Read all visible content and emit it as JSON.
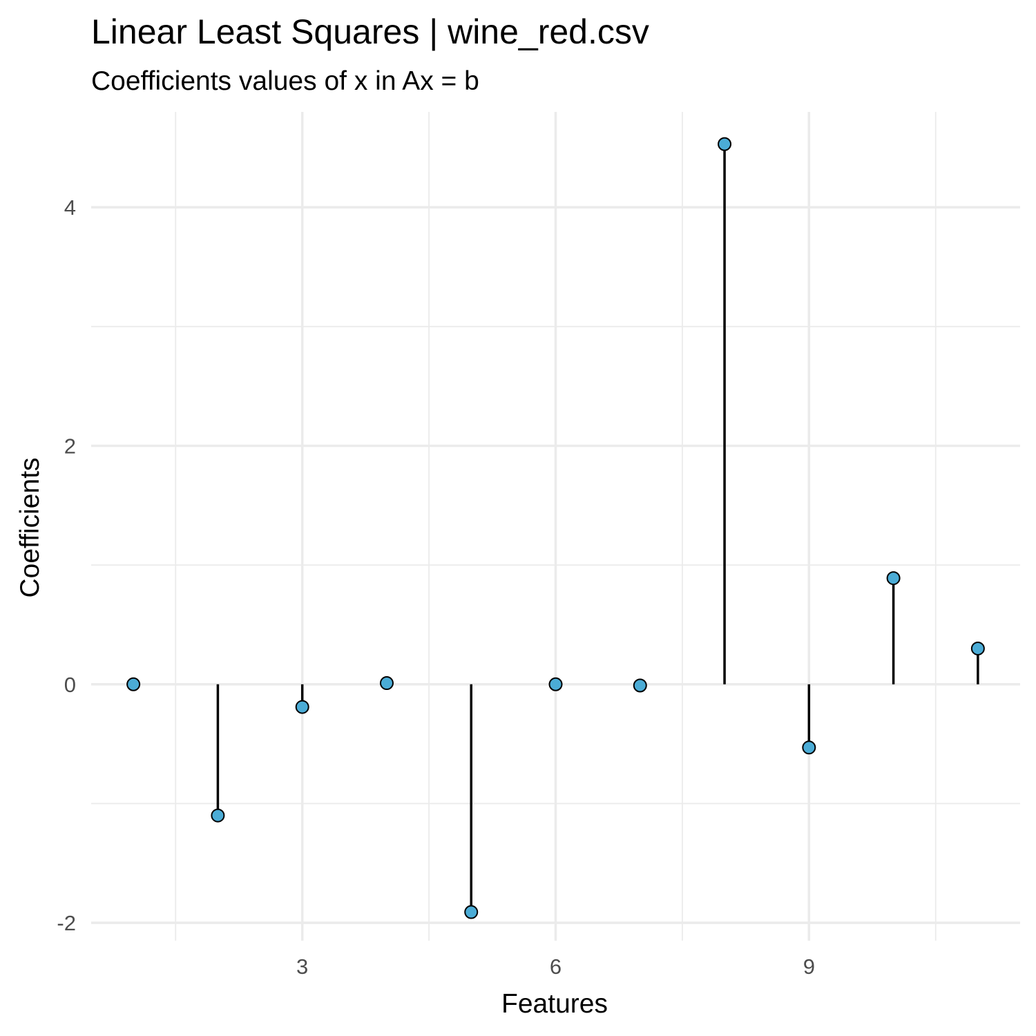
{
  "chart_data": {
    "type": "scatter",
    "style": "lollipop",
    "title": "Linear Least Squares | wine_red.csv",
    "subtitle": "Coefficients values of x in Ax = b",
    "xlabel": "Features",
    "ylabel": "Coefficients",
    "x": [
      1,
      2,
      3,
      4,
      5,
      6,
      7,
      8,
      9,
      10,
      11
    ],
    "values": [
      0.0,
      -1.1,
      -0.19,
      0.01,
      -1.91,
      0.0,
      -0.01,
      4.53,
      -0.53,
      0.89,
      0.3
    ],
    "xlim": [
      0.5,
      11.5
    ],
    "ylim": [
      -2.15,
      4.8
    ],
    "x_ticks": [
      3,
      6,
      9
    ],
    "x_tick_labels": [
      "3",
      "6",
      "9"
    ],
    "y_ticks": [
      -2,
      0,
      2,
      4
    ],
    "y_tick_labels": [
      "-2",
      "0",
      "2",
      "4"
    ],
    "grid": true,
    "legend": "none",
    "colors": {
      "point_fill": "#4bacd6",
      "stem": "#000000",
      "grid": "#ebebeb",
      "tick_text": "#4d4d4d"
    }
  }
}
